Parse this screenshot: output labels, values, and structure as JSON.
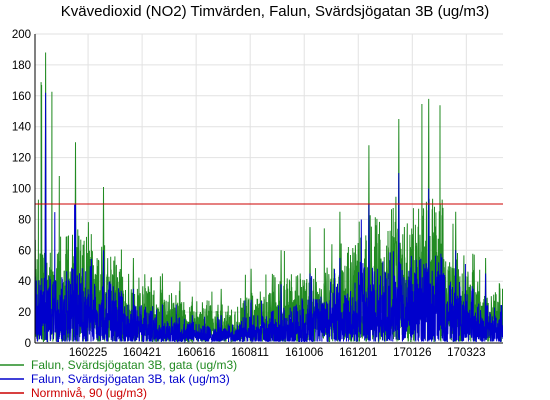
{
  "chart_data": {
    "type": "line",
    "title": "Kvävedioxid (NO2) Timvärden, Falun, Svärdsjögatan 3B (ug/m3)",
    "xlabel": "",
    "ylabel": "",
    "ylim": [
      0,
      200
    ],
    "yticks": [
      0,
      20,
      40,
      60,
      80,
      100,
      120,
      140,
      160,
      180,
      200
    ],
    "x_range": [
      "2016-01-01",
      "2017-04-30"
    ],
    "xticks": [
      {
        "date": "2016-02-25",
        "label": "160225"
      },
      {
        "date": "2016-04-21",
        "label": "160421"
      },
      {
        "date": "2016-06-16",
        "label": "160616"
      },
      {
        "date": "2016-08-11",
        "label": "160811"
      },
      {
        "date": "2016-10-06",
        "label": "161006"
      },
      {
        "date": "2016-12-01",
        "label": "161201"
      },
      {
        "date": "2017-01-26",
        "label": "170126"
      },
      {
        "date": "2017-03-23",
        "label": "170323"
      }
    ],
    "grid": true,
    "legend_position": "bottom-left",
    "series": [
      {
        "name": "Falun, Svärdsjögatan 3B, gata (ug/m3)",
        "color": "#228b22",
        "style": "hourly",
        "monthly_envelope": [
          {
            "month": "2016-01",
            "typical_max": 70,
            "peak": 188
          },
          {
            "month": "2016-02",
            "typical_max": 80,
            "peak": 130
          },
          {
            "month": "2016-03",
            "typical_max": 65,
            "peak": 101
          },
          {
            "month": "2016-04",
            "typical_max": 45,
            "peak": 55
          },
          {
            "month": "2016-05",
            "typical_max": 35,
            "peak": 45
          },
          {
            "month": "2016-06",
            "typical_max": 28,
            "peak": 30
          },
          {
            "month": "2016-07",
            "typical_max": 25,
            "peak": 35
          },
          {
            "month": "2016-08",
            "typical_max": 35,
            "peak": 48
          },
          {
            "month": "2016-09",
            "typical_max": 45,
            "peak": 60
          },
          {
            "month": "2016-10",
            "typical_max": 50,
            "peak": 75
          },
          {
            "month": "2016-11",
            "typical_max": 65,
            "peak": 85
          },
          {
            "month": "2016-12",
            "typical_max": 85,
            "peak": 128
          },
          {
            "month": "2017-01",
            "typical_max": 90,
            "peak": 145
          },
          {
            "month": "2017-02",
            "typical_max": 95,
            "peak": 158
          },
          {
            "month": "2017-03",
            "typical_max": 60,
            "peak": 85
          },
          {
            "month": "2017-04",
            "typical_max": 40,
            "peak": 55
          }
        ]
      },
      {
        "name": "Falun, Svärdsjögatan 3B, tak (ug/m3)",
        "color": "#0000cc",
        "style": "hourly",
        "monthly_envelope": [
          {
            "month": "2016-01",
            "typical_max": 45,
            "peak": 162
          },
          {
            "month": "2016-02",
            "typical_max": 50,
            "peak": 90
          },
          {
            "month": "2016-03",
            "typical_max": 40,
            "peak": 60
          },
          {
            "month": "2016-04",
            "typical_max": 25,
            "peak": 35
          },
          {
            "month": "2016-05",
            "typical_max": 18,
            "peak": 25
          },
          {
            "month": "2016-06",
            "typical_max": 14,
            "peak": 18
          },
          {
            "month": "2016-07",
            "typical_max": 12,
            "peak": 18
          },
          {
            "month": "2016-08",
            "typical_max": 18,
            "peak": 28
          },
          {
            "month": "2016-09",
            "typical_max": 25,
            "peak": 38
          },
          {
            "month": "2016-10",
            "typical_max": 30,
            "peak": 45
          },
          {
            "month": "2016-11",
            "typical_max": 40,
            "peak": 55
          },
          {
            "month": "2016-12",
            "typical_max": 55,
            "peak": 90
          },
          {
            "month": "2017-01",
            "typical_max": 60,
            "peak": 110
          },
          {
            "month": "2017-02",
            "typical_max": 60,
            "peak": 100
          },
          {
            "month": "2017-03",
            "typical_max": 40,
            "peak": 60
          },
          {
            "month": "2017-04",
            "typical_max": 25,
            "peak": 45
          }
        ]
      },
      {
        "name": "Normnivå, 90 (ug/m3)",
        "color": "#cc0000",
        "style": "constant",
        "value": 90
      }
    ]
  }
}
